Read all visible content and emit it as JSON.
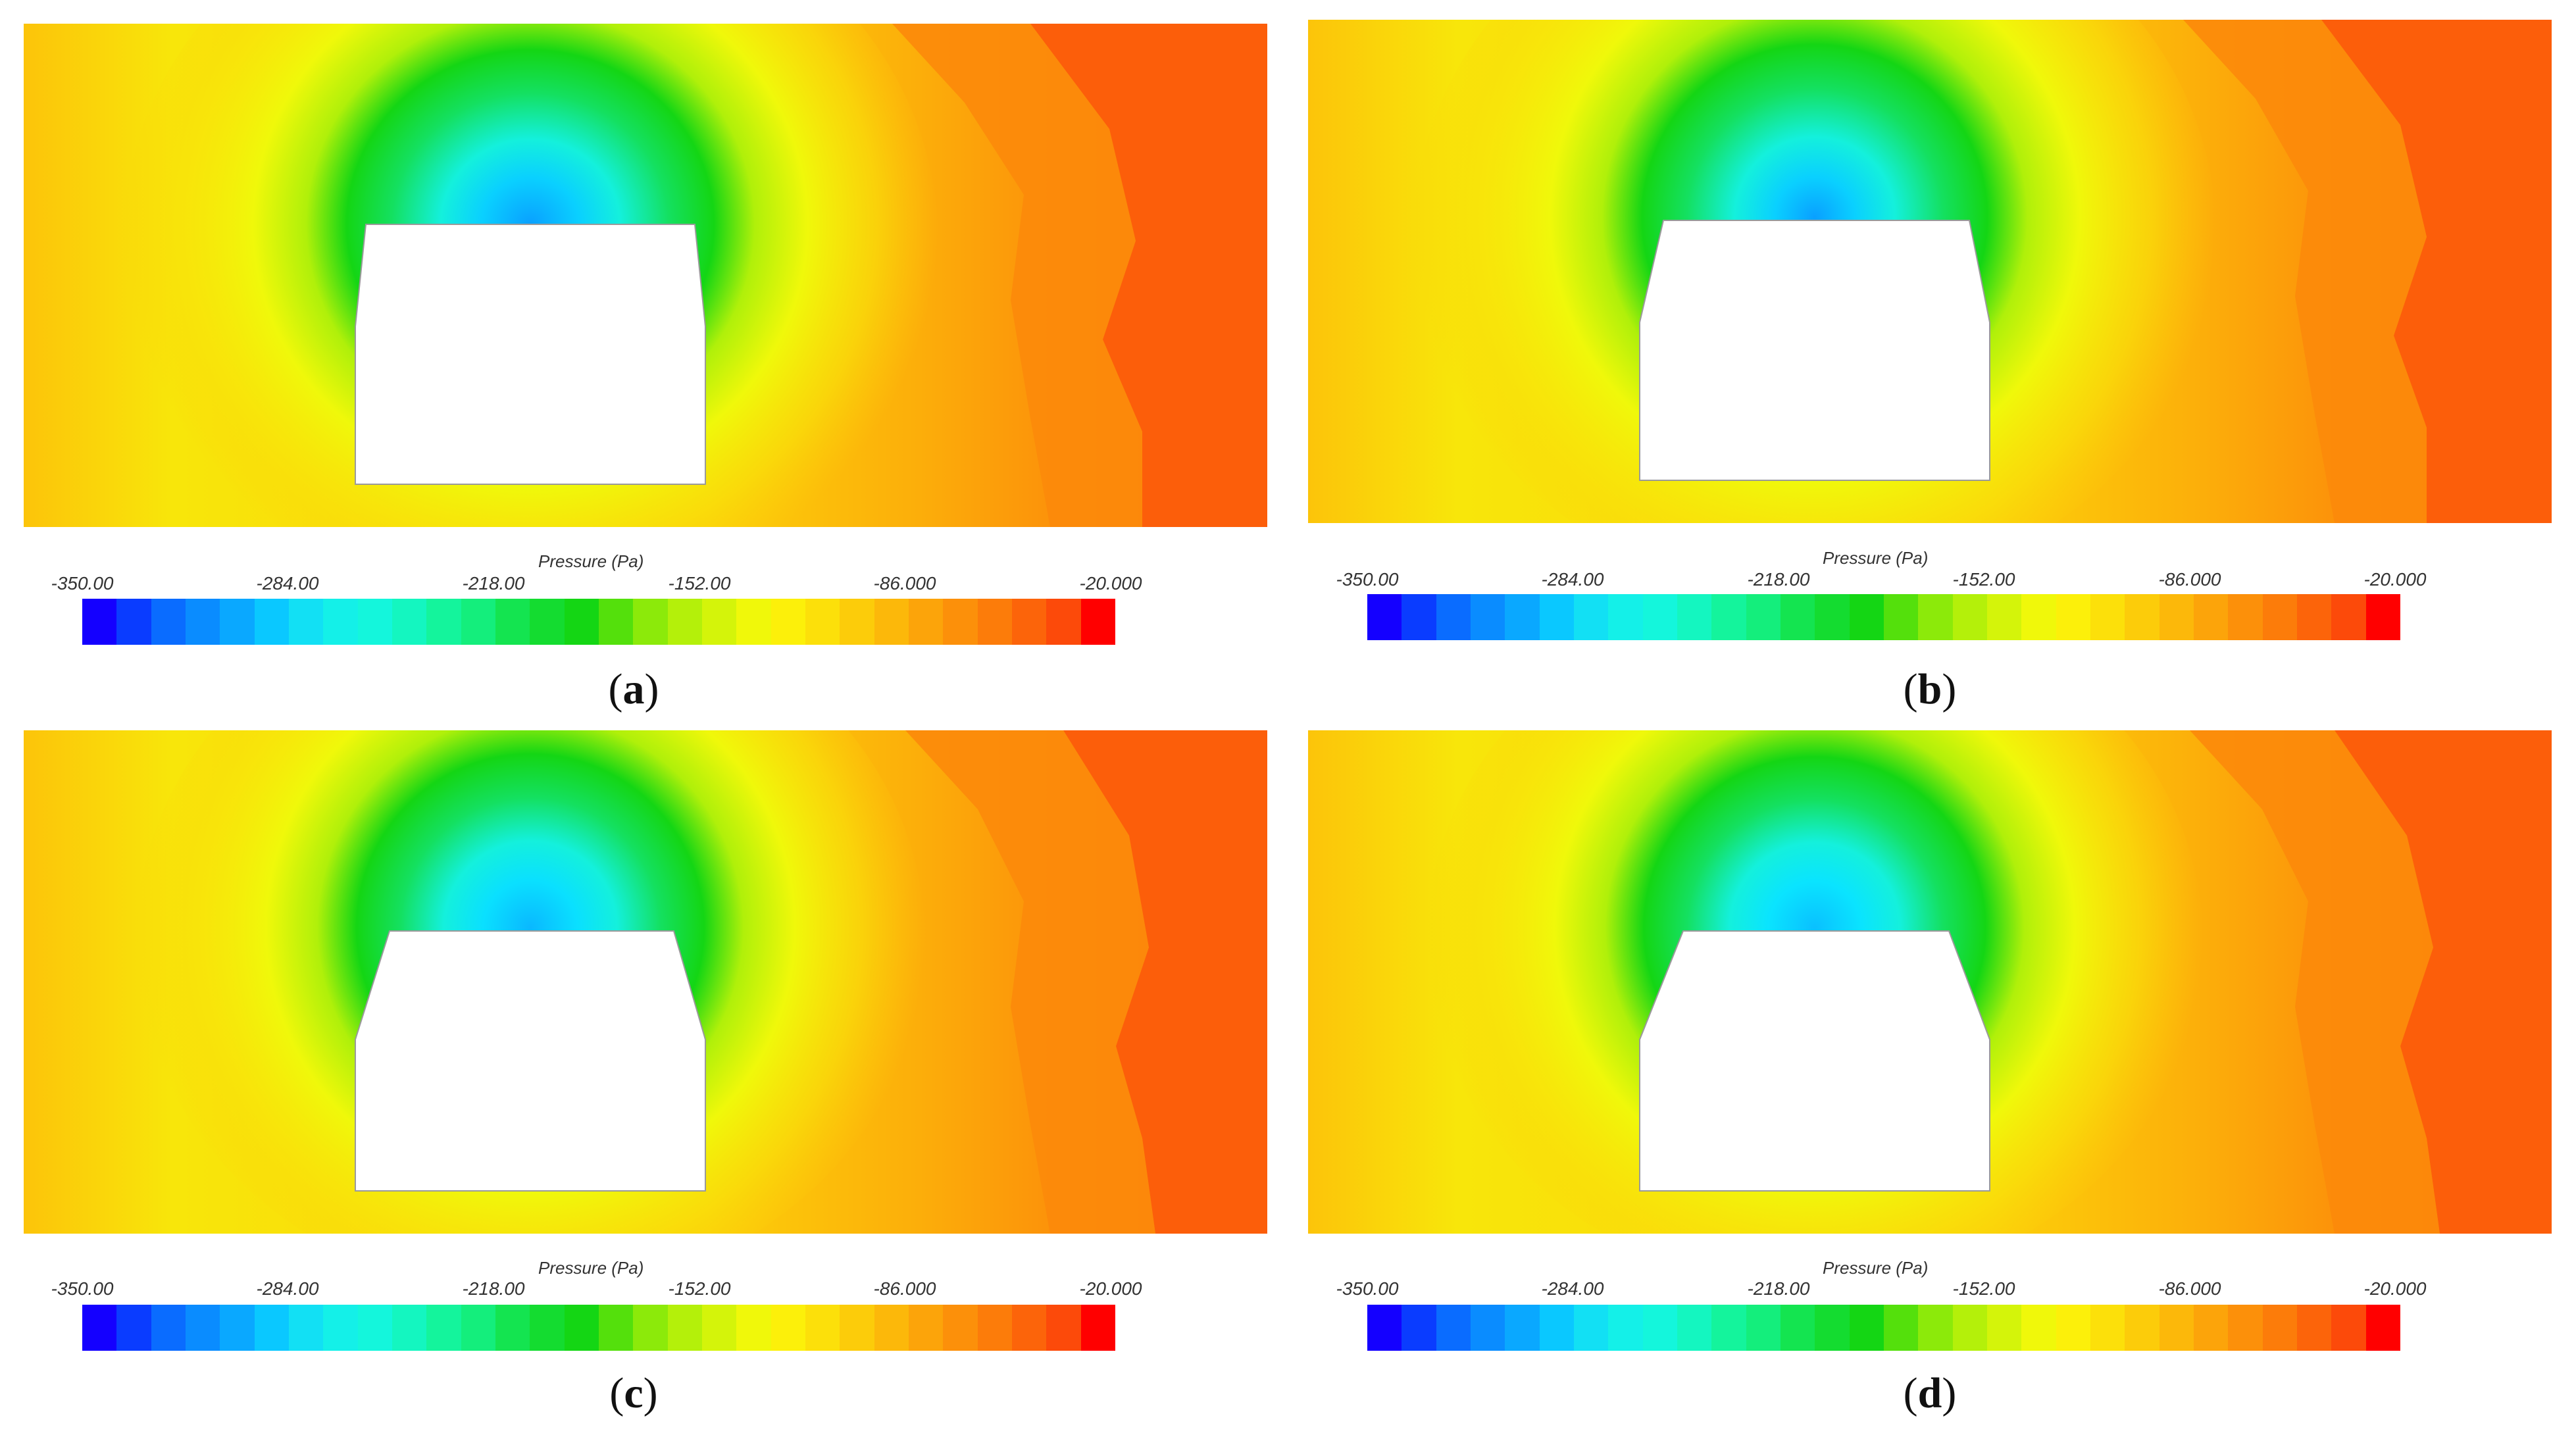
{
  "colorbar": {
    "title": "Pressure (Pa)",
    "ticks": [
      "-350.00",
      "-284.00",
      "-218.00",
      "-152.00",
      "-86.000",
      "-20.000"
    ],
    "range": [
      -350,
      -20
    ],
    "colors": [
      "#1400ff",
      "#0a3cff",
      "#0a6cff",
      "#0a8cff",
      "#0aa8ff",
      "#0ac8ff",
      "#12e0f4",
      "#14f0e8",
      "#14f6dc",
      "#14f6c0",
      "#14f49c",
      "#14ee7c",
      "#14e450",
      "#14dc30",
      "#14d614",
      "#54e00c",
      "#8cea0a",
      "#b4f00a",
      "#d4f40a",
      "#f0f80a",
      "#fcf00a",
      "#fce00a",
      "#fccc0a",
      "#fcb80a",
      "#fca40a",
      "#fc900a",
      "#fc7c0a",
      "#fc640a",
      "#fc4a0a",
      "#ff0000"
    ]
  },
  "field_colors": {
    "low": "#0aa8ff",
    "mid_low": "#14f0e8",
    "mid": "#14d614",
    "mid_high": "#f0f80a",
    "high": "#fcb80a",
    "max": "#fc5a0a",
    "obstacle_fill": "#ffffff"
  },
  "panels": [
    {
      "label_open": "(",
      "label": "a",
      "label_close": ")"
    },
    {
      "label_open": "(",
      "label": "b",
      "label_close": ")"
    },
    {
      "label_open": "(",
      "label": "c",
      "label_close": ")"
    },
    {
      "label_open": "(",
      "label": "d",
      "label_close": ")"
    }
  ]
}
